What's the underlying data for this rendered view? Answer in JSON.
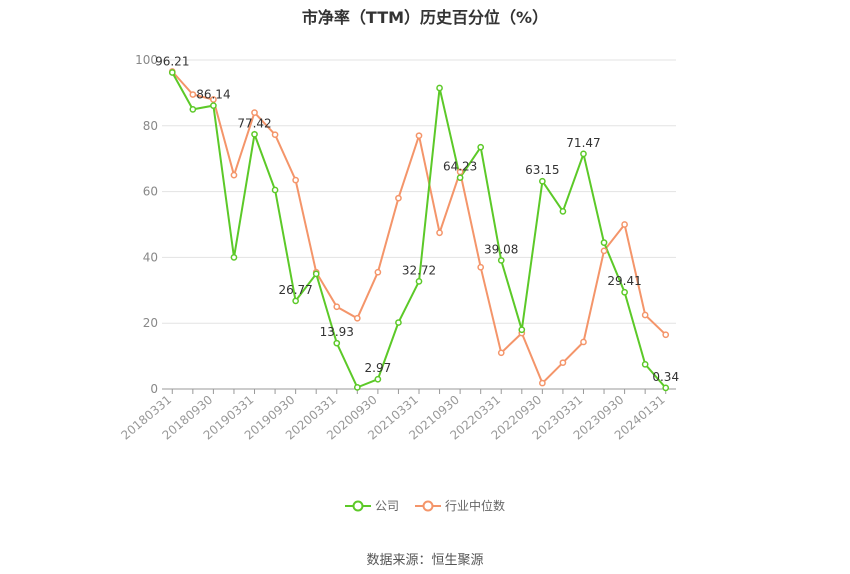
{
  "chart_data": {
    "type": "line",
    "title": "市净率（TTM）历史百分位（%）",
    "source": "数据来源：恒生聚源",
    "ylim": [
      0,
      100
    ],
    "yticks": [
      0,
      20,
      40,
      60,
      80,
      100
    ],
    "x_tick_labels": [
      "20180331",
      "20180930",
      "20190331",
      "20190930",
      "20200331",
      "20200930",
      "20210331",
      "20210930",
      "20220331",
      "20220930",
      "20230331",
      "20230930",
      "20240131"
    ],
    "x": [
      "20180331",
      "20180630",
      "20180930",
      "20181231",
      "20190331",
      "20190630",
      "20190930",
      "20191231",
      "20200331",
      "20200630",
      "20200930",
      "20201231",
      "20210331",
      "20210630",
      "20210930",
      "20211231",
      "20220331",
      "20220630",
      "20220930",
      "20221231",
      "20230331",
      "20230630",
      "20230930",
      "20231231",
      "20240131"
    ],
    "grid": true,
    "legend_position": "bottom",
    "series": [
      {
        "name": "公司",
        "color": "#5cc928",
        "values": [
          96.21,
          85,
          86.14,
          40,
          77.42,
          60.5,
          26.77,
          35,
          13.93,
          0.5,
          2.97,
          20.2,
          32.72,
          91.5,
          64.23,
          73.5,
          39.08,
          18,
          63.15,
          54,
          71.47,
          44.5,
          29.41,
          7.5,
          0.34
        ],
        "data_labels": [
          "96.21",
          "",
          "86.14",
          "",
          "77.42",
          "",
          "26.77",
          "",
          "13.93",
          "",
          "2.97",
          "",
          "32.72",
          "",
          "64.23",
          "",
          "39.08",
          "",
          "63.15",
          "",
          "71.47",
          "",
          "29.41",
          "",
          "0.34"
        ]
      },
      {
        "name": "行业中位数",
        "color": "#f4956a",
        "values": [
          96.5,
          89.5,
          88,
          65,
          84,
          77.3,
          63.5,
          35.5,
          25,
          21.5,
          35.5,
          58,
          77,
          47.5,
          66,
          37,
          11,
          17,
          1.8,
          8,
          14.3,
          42,
          50,
          22.5,
          16.5
        ]
      }
    ]
  }
}
